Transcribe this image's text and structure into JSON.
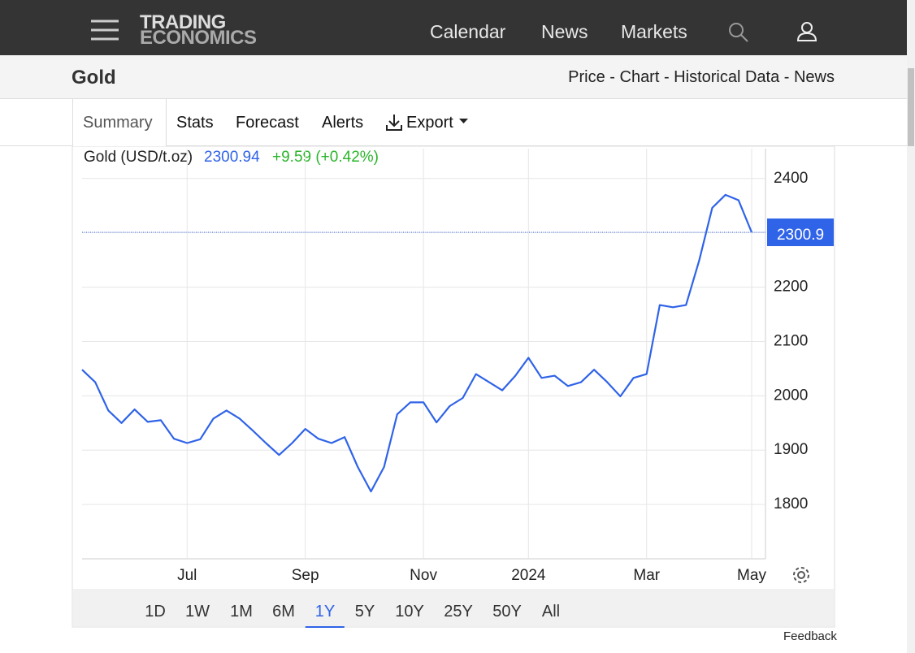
{
  "header": {
    "logo": [
      "TRADING",
      "ECONOMICS"
    ],
    "nav": [
      "Calendar",
      "News",
      "Markets"
    ]
  },
  "page": {
    "title": "Gold",
    "links": "Price - Chart - Historical Data - News"
  },
  "tabs": [
    "Summary",
    "Stats",
    "Forecast",
    "Alerts",
    "Export"
  ],
  "legend": {
    "name": "Gold (USD/t.oz)",
    "price": "2300.94",
    "change": "+9.59 (+0.42%)"
  },
  "ranges": [
    "1D",
    "1W",
    "1M",
    "6M",
    "1Y",
    "5Y",
    "10Y",
    "25Y",
    "50Y",
    "All"
  ],
  "selected_range": "1Y",
  "feedback": "Feedback",
  "chart_data": {
    "type": "line",
    "color": "#2f63e8",
    "grid": true,
    "categories": [
      null,
      null,
      null,
      null,
      null,
      null,
      null,
      null,
      "Jul",
      null,
      null,
      null,
      null,
      null,
      null,
      null,
      null,
      "Sep",
      null,
      null,
      null,
      null,
      null,
      null,
      null,
      null,
      "Nov",
      null,
      null,
      null,
      null,
      null,
      null,
      null,
      "2024",
      null,
      null,
      null,
      null,
      null,
      null,
      null,
      null,
      "Mar",
      null,
      null,
      null,
      null,
      null,
      null,
      null,
      "May"
    ],
    "values": [
      2048,
      2025,
      1973,
      1950,
      1975,
      1952,
      1955,
      1921,
      1913,
      1920,
      1958,
      1973,
      1958,
      1936,
      1913,
      1891,
      1913,
      1939,
      1921,
      1913,
      1924,
      1869,
      1824,
      1869,
      1966,
      1988,
      1988,
      1951,
      1981,
      1996,
      2040,
      2025,
      2010,
      2037,
      2070,
      2033,
      2037,
      2018,
      2025,
      2048,
      2025,
      1999,
      2033,
      2040,
      2167,
      2163,
      2167,
      2249,
      2346,
      2370,
      2360,
      2300.94
    ],
    "ylim": [
      1700,
      2455
    ],
    "yticks": [
      1800,
      1900,
      2000,
      2100,
      2200,
      2300,
      2400
    ],
    "price_line": {
      "value": 2300.94,
      "label": "2300.9"
    }
  }
}
